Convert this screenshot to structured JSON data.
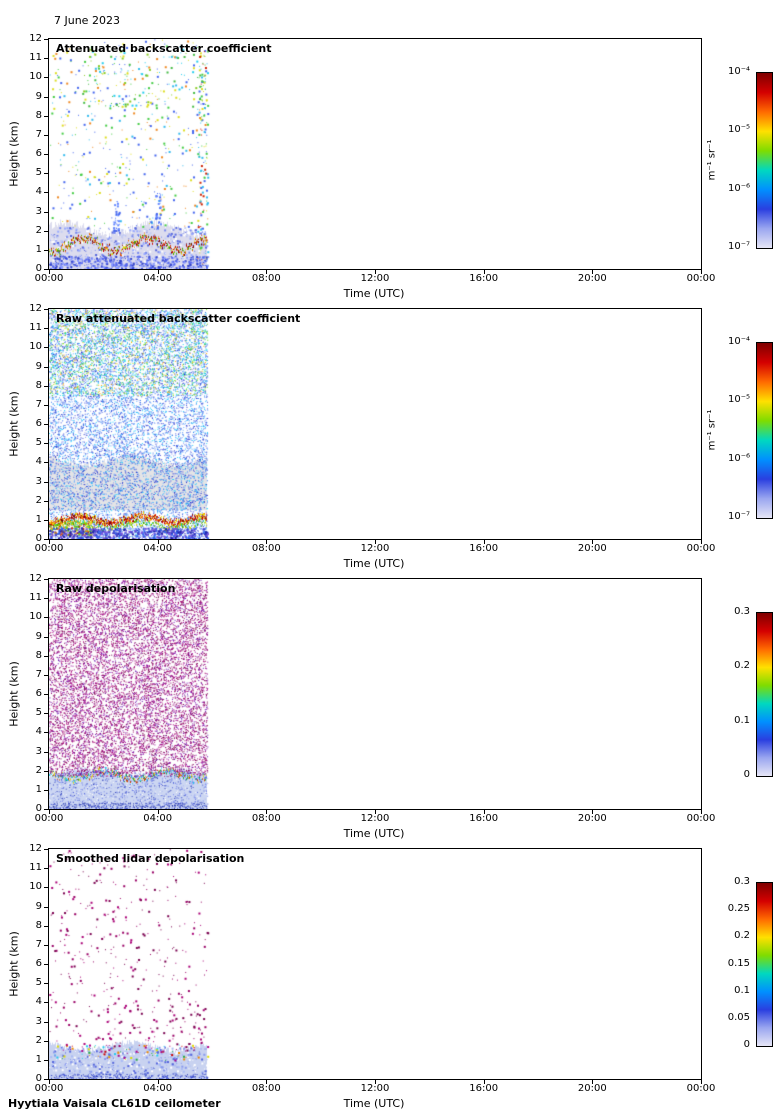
{
  "page": {
    "date_label": "7 June 2023",
    "footer_label": "Hyytiala Vaisala CL61D ceilometer"
  },
  "chart_data": [
    {
      "type": "heatmap",
      "title": "Attenuated backscatter coefficient",
      "xlabel": "Time (UTC)",
      "ylabel": "Height (km)",
      "x_ticks": [
        "00:00",
        "04:00",
        "08:00",
        "12:00",
        "16:00",
        "20:00",
        "00:00"
      ],
      "y_ticks": [
        "0",
        "1",
        "2",
        "3",
        "4",
        "5",
        "6",
        "7",
        "8",
        "9",
        "10",
        "11",
        "12"
      ],
      "ylim": [
        0,
        12
      ],
      "xlim_hours": [
        0,
        24
      ],
      "data_extent_hours": [
        0,
        5.83
      ],
      "colorbar": {
        "scale": "log",
        "ticks": [
          "10⁻⁴",
          "10⁻⁵",
          "10⁻⁶",
          "10⁻⁷"
        ],
        "unit": "m⁻¹ sr⁻¹",
        "gradient": [
          "#7f0000",
          "#d40000",
          "#ff6a00",
          "#ffe000",
          "#7fdc00",
          "#00d8c0",
          "#0090ff",
          "#2a3fe0",
          "#9aa6f0",
          "#e6e6f6"
        ]
      },
      "layers": [
        {
          "kind": "fill",
          "x0": 0,
          "x1": 5.83,
          "yTop": 2.1,
          "yBot": 0,
          "waveAmp": 0.5,
          "color": "#dcdcee"
        },
        {
          "kind": "speckle",
          "x0": 0,
          "x1": 5.83,
          "y0": 0,
          "y1": 2.2,
          "density": 0.1,
          "colors": [
            "#5566dd",
            "#7788ee",
            "#99aaff",
            "#ffffff",
            "#c4ccf2"
          ],
          "sizes": [
            1,
            2
          ]
        },
        {
          "kind": "speckle",
          "x0": 0,
          "x1": 5.83,
          "y0": 2.2,
          "y1": 12,
          "density": 0.015,
          "colors": [
            "#4466ee",
            "#4466ee",
            "#33bbee",
            "#44cc44",
            "#dddd22",
            "#ee8822"
          ],
          "sizes": [
            1,
            2
          ]
        },
        {
          "kind": "speckle",
          "x0": 1.2,
          "x1": 5.83,
          "y0": 8.5,
          "y1": 11.5,
          "density": 0.02,
          "colors": [
            "#dddd22",
            "#88cc22",
            "#44bb44",
            "#22ccee",
            "#ffffff"
          ],
          "sizes": [
            1,
            2
          ]
        },
        {
          "kind": "speckle",
          "x0": 5.45,
          "x1": 5.83,
          "y0": 0,
          "y1": 11.5,
          "density": 0.06,
          "colors": [
            "#4466ee",
            "#33bbee",
            "#44cc44",
            "#dddd22",
            "#cc2200"
          ],
          "sizes": [
            1,
            2
          ]
        },
        {
          "kind": "speckle",
          "x0": 2.35,
          "x1": 2.6,
          "y0": 2,
          "y1": 3.6,
          "density": 0.15,
          "colors": [
            "#4466ee",
            "#6688ff"
          ],
          "sizes": [
            1,
            2
          ]
        },
        {
          "kind": "speckle",
          "x0": 3.9,
          "x1": 4.1,
          "y0": 2,
          "y1": 4.3,
          "density": 0.12,
          "colors": [
            "#4466ee",
            "#6688ff"
          ],
          "sizes": [
            1,
            2
          ]
        },
        {
          "kind": "hline",
          "x0": 0,
          "x1": 5.83,
          "y": 1.3,
          "amp": 0.35,
          "thickness": 3,
          "colors": [
            "#7f0000",
            "#cc0000",
            "#ee6600",
            "#dddd00",
            "#44aa00"
          ]
        },
        {
          "kind": "speckle",
          "x0": 0,
          "x1": 5.83,
          "y0": 0,
          "y1": 0.7,
          "density": 0.2,
          "colors": [
            "#3344cc",
            "#5566ee",
            "#8899ff"
          ],
          "sizes": [
            1,
            2
          ]
        }
      ]
    },
    {
      "type": "heatmap",
      "title": "Raw attenuated backscatter coefficient",
      "xlabel": "Time (UTC)",
      "ylabel": "Height (km)",
      "x_ticks": [
        "00:00",
        "04:00",
        "08:00",
        "12:00",
        "16:00",
        "20:00",
        "00:00"
      ],
      "y_ticks": [
        "0",
        "1",
        "2",
        "3",
        "4",
        "5",
        "6",
        "7",
        "8",
        "9",
        "10",
        "11",
        "12"
      ],
      "ylim": [
        0,
        12
      ],
      "xlim_hours": [
        0,
        24
      ],
      "data_extent_hours": [
        0,
        5.83
      ],
      "colorbar": {
        "scale": "log",
        "ticks": [
          "10⁻⁴",
          "10⁻⁵",
          "10⁻⁶",
          "10⁻⁷"
        ],
        "unit": "m⁻¹ sr⁻¹",
        "gradient": [
          "#7f0000",
          "#d40000",
          "#ff6a00",
          "#ffe000",
          "#7fdc00",
          "#00d8c0",
          "#0090ff",
          "#2a3fe0",
          "#9aa6f0",
          "#e6e6f6"
        ]
      },
      "layers": [
        {
          "kind": "fill",
          "x0": 0,
          "x1": 5.83,
          "yTop": 4.1,
          "yBot": 1.5,
          "waveAmp": 0.45,
          "color": "#e4e4e6"
        },
        {
          "kind": "speckle",
          "x0": 0,
          "x1": 5.83,
          "y0": 0,
          "y1": 12,
          "density": 0.28,
          "colors": [
            "#2233cc",
            "#4455dd",
            "#3377ee",
            "#66aaff",
            "#22ccff",
            "#8899ee"
          ],
          "sizes": [
            1
          ]
        },
        {
          "kind": "speckle",
          "x0": 0,
          "x1": 5.83,
          "y0": 7.5,
          "y1": 12,
          "density": 0.14,
          "colors": [
            "#22cc66",
            "#22ccee",
            "#bbdd22",
            "#66dd22",
            "#ffaa00",
            "#00e0d0"
          ],
          "sizes": [
            1
          ]
        },
        {
          "kind": "speckle",
          "x0": 0,
          "x1": 1.6,
          "y0": 0.2,
          "y1": 1.0,
          "density": 0.25,
          "colors": [
            "#dddd00",
            "#ff9900",
            "#cc2200",
            "#66cc00"
          ],
          "sizes": [
            1,
            2
          ]
        },
        {
          "kind": "hline",
          "x0": 0,
          "x1": 5.83,
          "y": 1.05,
          "amp": 0.18,
          "thickness": 5,
          "colors": [
            "#7f0000",
            "#cc0000",
            "#ff6600",
            "#eedd00"
          ]
        },
        {
          "kind": "hline",
          "x0": 0,
          "x1": 5.83,
          "y": 0.75,
          "amp": 0.15,
          "thickness": 2,
          "colors": [
            "#44aa00",
            "#88cc00",
            "#22ccaa",
            "#dddd00"
          ]
        },
        {
          "kind": "speckle",
          "x0": 0,
          "x1": 5.83,
          "y0": 0,
          "y1": 0.6,
          "density": 0.35,
          "colors": [
            "#2222aa",
            "#4444cc",
            "#7755dd",
            "#3366ee"
          ],
          "sizes": [
            1,
            2
          ]
        }
      ]
    },
    {
      "type": "heatmap",
      "title": "Raw depolarisation",
      "xlabel": "Time (UTC)",
      "ylabel": "Height (km)",
      "x_ticks": [
        "00:00",
        "04:00",
        "08:00",
        "12:00",
        "16:00",
        "20:00",
        "00:00"
      ],
      "y_ticks": [
        "0",
        "1",
        "2",
        "3",
        "4",
        "5",
        "6",
        "7",
        "8",
        "9",
        "10",
        "11",
        "12"
      ],
      "ylim": [
        0,
        12
      ],
      "xlim_hours": [
        0,
        24
      ],
      "data_extent_hours": [
        0,
        5.83
      ],
      "colorbar": {
        "scale": "linear",
        "ticks": [
          "0.3",
          "0.2",
          "0.1",
          "0"
        ],
        "gradient": [
          "#7f0000",
          "#d40000",
          "#ff6a00",
          "#ffe000",
          "#7fdc00",
          "#00d8c0",
          "#0090ff",
          "#2a3fe0",
          "#9aa6f0",
          "#e6e6f6"
        ]
      },
      "layers": [
        {
          "kind": "fill",
          "x0": 0,
          "x1": 5.83,
          "yTop": 1.9,
          "yBot": 0,
          "waveAmp": 0.3,
          "color": "#ccd6f2"
        },
        {
          "kind": "speckle",
          "x0": 0,
          "x1": 5.83,
          "y0": 1.7,
          "y1": 12,
          "density": 0.32,
          "colors": [
            "#8b0066",
            "#a0006e",
            "#77004d",
            "#990099",
            "#6a0dad",
            "#b01080"
          ],
          "sizes": [
            1
          ]
        },
        {
          "kind": "speckle",
          "x0": 0,
          "x1": 5.83,
          "y0": 0,
          "y1": 1.9,
          "density": 0.18,
          "colors": [
            "#3344bb",
            "#5566dd",
            "#7788ee",
            "#ffffff",
            "#aab8f0"
          ],
          "sizes": [
            1
          ]
        },
        {
          "kind": "hline",
          "x0": 0,
          "x1": 5.83,
          "y": 1.8,
          "amp": 0.22,
          "thickness": 2,
          "colors": [
            "#22aa44",
            "#22ccee",
            "#dddd22",
            "#cc4400",
            "#4455dd"
          ]
        },
        {
          "kind": "speckle",
          "x0": 0,
          "x1": 5.83,
          "y0": 0,
          "y1": 0.35,
          "density": 0.3,
          "colors": [
            "#2233aa",
            "#4455cc"
          ],
          "sizes": [
            1
          ]
        }
      ]
    },
    {
      "type": "heatmap",
      "title": "Smoothed lidar depolarisation",
      "xlabel": "Time (UTC)",
      "ylabel": "Height (km)",
      "x_ticks": [
        "00:00",
        "04:00",
        "08:00",
        "12:00",
        "16:00",
        "20:00",
        "00:00"
      ],
      "y_ticks": [
        "0",
        "1",
        "2",
        "3",
        "4",
        "5",
        "6",
        "7",
        "8",
        "9",
        "10",
        "11",
        "12"
      ],
      "ylim": [
        0,
        12
      ],
      "xlim_hours": [
        0,
        24
      ],
      "data_extent_hours": [
        0,
        5.83
      ],
      "colorbar": {
        "scale": "linear",
        "ticks": [
          "0.3",
          "0.25",
          "0.2",
          "0.15",
          "0.1",
          "0.05",
          "0"
        ],
        "gradient": [
          "#7f0000",
          "#d40000",
          "#ff6a00",
          "#ffe000",
          "#7fdc00",
          "#00d8c0",
          "#0090ff",
          "#2a3fe0",
          "#9aa6f0",
          "#e6e6f6"
        ]
      },
      "layers": [
        {
          "kind": "fill",
          "x0": 0,
          "x1": 5.83,
          "yTop": 1.7,
          "yBot": 0,
          "waveAmp": 0.35,
          "color": "#c8d2f0"
        },
        {
          "kind": "speckle",
          "x0": 0,
          "x1": 5.83,
          "y0": 0,
          "y1": 1.7,
          "density": 0.1,
          "colors": [
            "#5566dd",
            "#8899ee",
            "#aabbf5",
            "#ffffff"
          ],
          "sizes": [
            1,
            2
          ]
        },
        {
          "kind": "speckle",
          "x0": 0,
          "x1": 5.83,
          "y0": 1.0,
          "y1": 1.8,
          "density": 0.035,
          "colors": [
            "#cc0000",
            "#ee8800",
            "#dddd00",
            "#22aa44",
            "#aa0088",
            "#22ccee"
          ],
          "sizes": [
            1,
            2
          ]
        },
        {
          "kind": "speckle",
          "x0": 0,
          "x1": 5.83,
          "y0": 1.7,
          "y1": 12,
          "density": 0.012,
          "colors": [
            "#990066",
            "#aa0077",
            "#7a0050"
          ],
          "sizes": [
            1,
            2
          ]
        },
        {
          "kind": "speckle",
          "x0": 2.1,
          "x1": 2.6,
          "y0": 1.5,
          "y1": 5.5,
          "density": 0.02,
          "colors": [
            "#990066",
            "#aa0077"
          ],
          "sizes": [
            1,
            2
          ]
        },
        {
          "kind": "speckle",
          "x0": 4.3,
          "x1": 5.83,
          "y0": 1.5,
          "y1": 4.0,
          "density": 0.015,
          "colors": [
            "#990066",
            "#7a0050"
          ],
          "sizes": [
            1,
            2
          ]
        },
        {
          "kind": "speckle",
          "x0": 0,
          "x1": 5.83,
          "y0": 0,
          "y1": 0.3,
          "density": 0.25,
          "colors": [
            "#3344cc",
            "#2233bb"
          ],
          "sizes": [
            1
          ]
        }
      ]
    }
  ]
}
